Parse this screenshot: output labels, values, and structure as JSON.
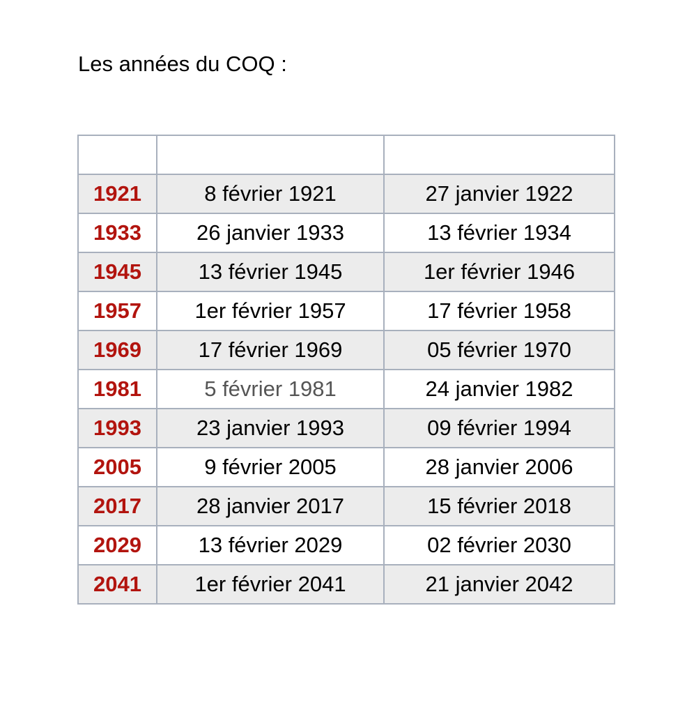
{
  "title": "Les années du COQ :",
  "table": {
    "header": [
      "",
      "",
      ""
    ],
    "rows": [
      {
        "year": "1921",
        "start": "8 février 1921",
        "end": "27 janvier 1922"
      },
      {
        "year": "1933",
        "start": "26 janvier 1933",
        "end": "13 février 1934"
      },
      {
        "year": "1945",
        "start": "13 février 1945",
        "end": "1er février 1946"
      },
      {
        "year": "1957",
        "start": "1er février 1957",
        "end": "17 février 1958"
      },
      {
        "year": "1969",
        "start": "17 février 1969",
        "end": "05 février 1970"
      },
      {
        "year": "1981",
        "start": "5 février 1981",
        "end": "24 janvier 1982"
      },
      {
        "year": "1993",
        "start": "23 janvier 1993",
        "end": "09 février 1994"
      },
      {
        "year": "2005",
        "start": "9 février 2005",
        "end": "28 janvier 2006"
      },
      {
        "year": "2017",
        "start": "28 janvier 2017",
        "end": "15 février 2018"
      },
      {
        "year": "2029",
        "start": "13 février 2029",
        "end": "02 février 2030"
      },
      {
        "year": "2041",
        "start": "1er février 2041",
        "end": "21 janvier 2042"
      }
    ]
  },
  "colors": {
    "year_text": "#b2140e",
    "border": "#a8b0bd",
    "stripe": "#ececec"
  }
}
